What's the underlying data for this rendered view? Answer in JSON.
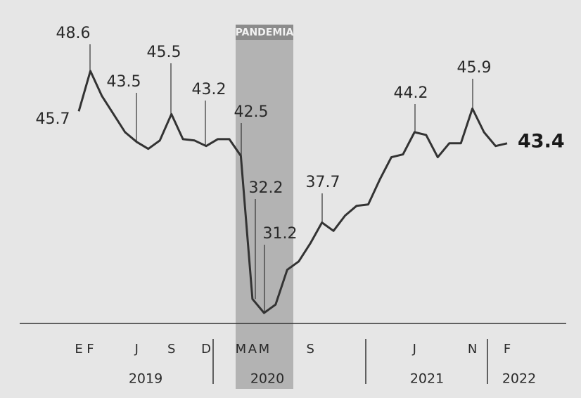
{
  "chart_data": {
    "type": "line",
    "categories": [
      "E",
      "F",
      null,
      null,
      null,
      "J",
      null,
      null,
      "S",
      null,
      null,
      "D",
      null,
      null,
      "M",
      "A",
      "M",
      null,
      null,
      null,
      "S",
      null,
      null,
      null,
      null,
      null,
      null,
      null,
      null,
      "J",
      null,
      null,
      null,
      null,
      "N",
      null,
      null,
      "F"
    ],
    "values": [
      45.7,
      48.6,
      46.8,
      45.5,
      44.2,
      43.5,
      43.0,
      43.6,
      45.5,
      43.7,
      43.6,
      43.2,
      43.7,
      43.7,
      42.5,
      32.2,
      31.2,
      31.8,
      34.3,
      34.9,
      36.2,
      37.7,
      37.1,
      38.2,
      38.9,
      39.0,
      40.8,
      42.4,
      42.6,
      44.2,
      44.0,
      42.4,
      43.4,
      43.4,
      45.9,
      44.2,
      43.2,
      43.4
    ],
    "value_labels": [
      "45.7",
      "48.6",
      null,
      null,
      null,
      "43.5",
      null,
      null,
      "45.5",
      null,
      null,
      "43.2",
      null,
      null,
      "42.5",
      "32.2",
      "31.2",
      null,
      null,
      null,
      null,
      "37.7",
      null,
      null,
      null,
      null,
      null,
      null,
      null,
      "44.2",
      null,
      null,
      null,
      null,
      "45.9",
      null,
      null,
      "43.4"
    ],
    "color": "#333333",
    "ylim": [
      30,
      50
    ],
    "year_labels": [
      "2019",
      "2020",
      "2021",
      "2022"
    ],
    "band_label": "PANDEMIA"
  }
}
